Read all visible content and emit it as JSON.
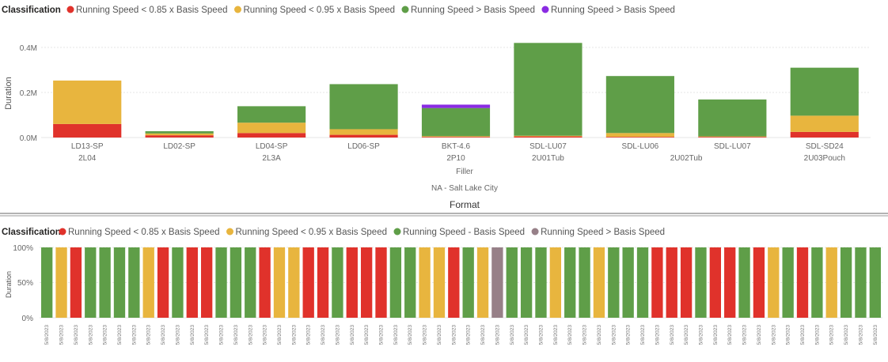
{
  "colors": {
    "red": "#E0322B",
    "yellow": "#E8B53E",
    "green": "#5F9E48",
    "purple": "#8A2BE2",
    "gray": "#978088",
    "grid": "#E6E6E6",
    "divider": "#9a9a9a"
  },
  "top": {
    "legend": {
      "title": "Classification",
      "items": [
        {
          "label": "Running Speed < 0.85 x Basis Speed",
          "color": "#E0322B"
        },
        {
          "label": "Running Speed < 0.95 x Basis Speed",
          "color": "#E8B53E"
        },
        {
          "label": "Running Speed > Basis Speed",
          "color": "#5F9E48"
        },
        {
          "label": "Running Speed > Basis Speed",
          "color": "#8A2BE2"
        }
      ]
    },
    "y_ticks": [
      "0.4M",
      "0.2M",
      "0.0M"
    ],
    "x_level2_label": "Filler",
    "x_level3_label": "NA - Salt Lake City",
    "x_title": "Format"
  },
  "bottom": {
    "legend": {
      "title": "Classification",
      "items": [
        {
          "label": "Running Speed < 0.85 x Basis Speed",
          "color": "#E0322B"
        },
        {
          "label": "Running Speed < 0.95 x Basis Speed",
          "color": "#E8B53E"
        },
        {
          "label": "Running Speed - Basis Speed",
          "color": "#5F9E48"
        },
        {
          "label": "Running Speed > Basis Speed",
          "color": "#978088"
        }
      ]
    },
    "y_ticks": [
      "100%",
      "50%",
      "0%"
    ]
  },
  "chart_data": [
    {
      "type": "bar",
      "stacked": true,
      "ylabel": "Duration",
      "xlabel": "Format",
      "ylim": [
        0,
        420000
      ],
      "categories": [
        "LD13-SP",
        "LD02-SP",
        "LD04-SP",
        "LD06-SP",
        "BKT-4.6",
        "SDL-LU07",
        "SDL-LU06",
        "SDL-LU07",
        "SDL-SD24"
      ],
      "group_labels": [
        {
          "label": "2L04",
          "span": [
            0,
            0
          ]
        },
        {
          "label": "2L3A",
          "span": [
            2,
            2
          ]
        },
        {
          "label": "2P10",
          "span": [
            4,
            4
          ]
        },
        {
          "label": "2U01Tub",
          "span": [
            5,
            5
          ]
        },
        {
          "label": "2U02Tub",
          "span": [
            6,
            7
          ]
        },
        {
          "label": "2U03Pouch",
          "span": [
            8,
            8
          ]
        }
      ],
      "series": [
        {
          "name": "Running Speed < 0.85 x Basis Speed",
          "color": "#E0322B",
          "values": [
            60000,
            10000,
            20000,
            12000,
            3000,
            5000,
            3000,
            3000,
            25000
          ]
        },
        {
          "name": "Running Speed < 0.95 x Basis Speed",
          "color": "#E8B53E",
          "values": [
            193000,
            8000,
            46000,
            25000,
            3000,
            3000,
            17000,
            2000,
            72000
          ]
        },
        {
          "name": "Running Speed > Basis Speed",
          "color": "#5F9E48",
          "values": [
            0,
            10000,
            73000,
            200000,
            125000,
            412000,
            253000,
            164000,
            213000
          ]
        },
        {
          "name": "Running Speed > Basis Speed",
          "color": "#8A2BE2",
          "values": [
            0,
            0,
            0,
            0,
            15000,
            0,
            0,
            0,
            0
          ]
        }
      ]
    },
    {
      "type": "bar",
      "stacked": true,
      "percent": true,
      "ylabel": "Duration",
      "ylim": [
        0,
        100
      ],
      "date_label": "5/8/2023",
      "bar_count": 58,
      "bars": [
        "G",
        "Y",
        "R",
        "G",
        "G",
        "G",
        "G",
        "Y",
        "R",
        "G",
        "R",
        "R",
        "G",
        "G",
        "G",
        "R",
        "Y",
        "Y",
        "R",
        "R",
        "G",
        "R",
        "R",
        "R",
        "G",
        "G",
        "Y",
        "Y",
        "R",
        "G",
        "Y",
        "P",
        "G",
        "G",
        "G",
        "Y",
        "G",
        "G",
        "Y",
        "G",
        "G",
        "G",
        "R",
        "R",
        "R",
        "G",
        "R",
        "R",
        "G",
        "R",
        "Y",
        "G",
        "R",
        "G",
        "Y",
        "G",
        "G",
        "G"
      ],
      "legend_map": {
        "R": "Running Speed < 0.85 x Basis Speed",
        "Y": "Running Speed < 0.95 x Basis Speed",
        "G": "Running Speed - Basis Speed",
        "P": "Running Speed > Basis Speed"
      }
    }
  ]
}
